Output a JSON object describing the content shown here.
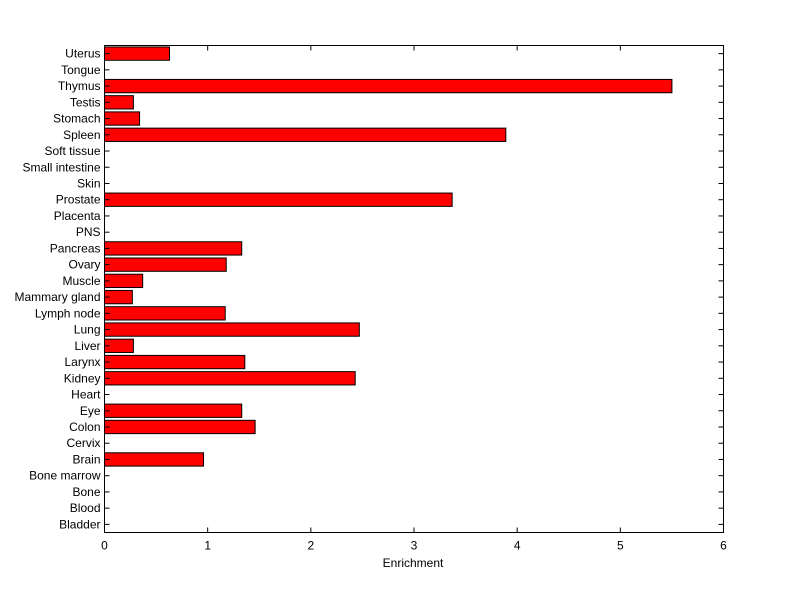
{
  "chart_data": {
    "type": "bar",
    "orientation": "horizontal",
    "categories": [
      "Bladder",
      "Blood",
      "Bone",
      "Bone marrow",
      "Brain",
      "Cervix",
      "Colon",
      "Eye",
      "Heart",
      "Kidney",
      "Larynx",
      "Liver",
      "Lung",
      "Lymph node",
      "Mammary gland",
      "Muscle",
      "Ovary",
      "Pancreas",
      "PNS",
      "Placenta",
      "Prostate",
      "Skin",
      "Small intestine",
      "Soft tissue",
      "Spleen",
      "Stomach",
      "Testis",
      "Thymus",
      "Tongue",
      "Uterus"
    ],
    "values": [
      0,
      0,
      0,
      0,
      0.96,
      0,
      1.46,
      1.33,
      0,
      2.43,
      1.36,
      0.28,
      2.47,
      1.17,
      0.27,
      0.37,
      1.18,
      1.33,
      0,
      0,
      3.37,
      0,
      0,
      0,
      3.89,
      0.34,
      0.28,
      5.5,
      0,
      0.63
    ],
    "xlabel": "Enrichment",
    "ylabel": "",
    "title": "",
    "xlim": [
      0,
      6
    ],
    "xticks": [
      "0",
      "1",
      "2",
      "3",
      "4",
      "5",
      "6"
    ],
    "bar_color": "#ff0000",
    "edge_color": "#000000",
    "grid": false
  }
}
